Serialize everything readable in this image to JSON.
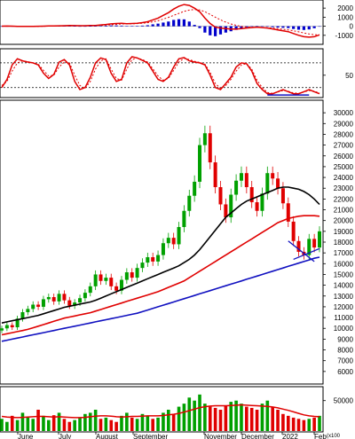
{
  "chart_data": [
    {
      "panel": "macd",
      "type": "line",
      "series": [
        {
          "role": "macd",
          "color": "#e00000",
          "values": [
            10,
            15,
            10,
            -5,
            -20,
            -20,
            -10,
            0,
            5,
            30,
            40,
            50,
            60,
            80,
            70,
            60,
            60,
            75,
            90,
            150,
            200,
            260,
            300,
            320,
            280,
            300,
            320,
            400,
            500,
            700,
            900,
            1200,
            1500,
            1900,
            2200,
            2400,
            2300,
            2000,
            1600,
            900,
            300,
            -100,
            -200,
            -250,
            -300,
            -300,
            -260,
            -200,
            -150,
            -100,
            -150,
            -200,
            -300,
            -400,
            -500,
            -600,
            -800,
            -1000,
            -1150,
            -1200,
            -1150,
            -950
          ]
        },
        {
          "role": "signal",
          "color": "#e00000",
          "style": "dashed",
          "values": [
            10,
            12,
            12,
            8,
            0,
            -8,
            -10,
            -7,
            -2,
            10,
            20,
            30,
            40,
            55,
            60,
            60,
            60,
            65,
            72,
            100,
            130,
            170,
            210,
            250,
            260,
            275,
            290,
            330,
            390,
            490,
            610,
            790,
            980,
            1200,
            1420,
            1640,
            1780,
            1850,
            1800,
            1600,
            1300,
            1000,
            700,
            450,
            250,
            100,
            -20,
            -80,
            -120,
            -120,
            -140,
            -160,
            -200,
            -260,
            -330,
            -400,
            -500,
            -620,
            -740,
            -850,
            -930,
            -950
          ]
        },
        {
          "role": "histogram",
          "color": "#0000cc",
          "type": "bar"
        }
      ],
      "ylim": [
        -1800,
        2700
      ],
      "yticks": [
        "2000",
        "1000",
        "0",
        "-1000"
      ]
    },
    {
      "panel": "stochastic",
      "type": "line",
      "series": [
        {
          "role": "%K",
          "color": "#e00000",
          "values": [
            20,
            40,
            75,
            90,
            85,
            82,
            80,
            75,
            55,
            42,
            52,
            82,
            88,
            75,
            35,
            15,
            20,
            45,
            80,
            92,
            88,
            55,
            35,
            40,
            80,
            95,
            92,
            86,
            80,
            60,
            40,
            35,
            45,
            70,
            90,
            93,
            85,
            82,
            80,
            75,
            50,
            20,
            15,
            30,
            45,
            70,
            80,
            78,
            60,
            30,
            15,
            5,
            5,
            10,
            15,
            10,
            5,
            5,
            10,
            15,
            10,
            5
          ]
        },
        {
          "role": "%D",
          "color": "#e00000",
          "style": "dashed",
          "values": [
            25,
            35,
            60,
            80,
            85,
            83,
            80,
            77,
            62,
            48,
            50,
            70,
            82,
            80,
            50,
            25,
            18,
            35,
            65,
            85,
            90,
            65,
            42,
            38,
            65,
            88,
            92,
            88,
            82,
            66,
            48,
            38,
            42,
            62,
            82,
            91,
            88,
            84,
            81,
            77,
            57,
            30,
            18,
            25,
            40,
            60,
            75,
            78,
            65,
            38,
            20,
            8,
            6,
            9,
            13,
            11,
            7,
            6,
            9,
            13,
            11,
            7
          ]
        }
      ],
      "ylim": [
        0,
        110
      ],
      "yticks": [
        "50"
      ],
      "reference_lines": [
        80,
        20
      ]
    },
    {
      "panel": "price",
      "type": "candlestick",
      "ylim": [
        5000,
        31000
      ],
      "yticks": [
        "30000",
        "29000",
        "28000",
        "27000",
        "26000",
        "25000",
        "24000",
        "23000",
        "22000",
        "21000",
        "20000",
        "19000",
        "18000",
        "17000",
        "16000",
        "15000",
        "14000",
        "13000",
        "12000",
        "11000",
        "10000",
        "9000",
        "8000",
        "7000",
        "6000"
      ],
      "xtick_labels": [
        "June",
        "July",
        "August",
        "September",
        "November",
        "December",
        "2022",
        "Feb"
      ],
      "close": [
        10000,
        10300,
        10100,
        10900,
        11500,
        11800,
        12200,
        12000,
        12700,
        12900,
        12500,
        13200,
        12600,
        12100,
        12400,
        12800,
        13300,
        13900,
        15000,
        14400,
        14700,
        13900,
        13500,
        14500,
        15200,
        14700,
        15600,
        16100,
        16600,
        16200,
        16800,
        17900,
        18400,
        17800,
        19400,
        20900,
        22300,
        23600,
        27000,
        28100,
        25400,
        23100,
        21500,
        20300,
        22400,
        23700,
        24400,
        23100,
        21700,
        20900,
        22500,
        24400,
        23900,
        23000,
        21600,
        19900,
        18100,
        17100,
        16800,
        18300,
        17500,
        19000
      ],
      "ma_lines": [
        {
          "role": "ma-black",
          "color": "#000000",
          "values": [
            10500,
            10600,
            10700,
            10800,
            10900,
            11000,
            11100,
            11200,
            11350,
            11500,
            11650,
            11800,
            11950,
            12050,
            12150,
            12250,
            12350,
            12450,
            12600,
            12800,
            13000,
            13200,
            13400,
            13600,
            13800,
            14000,
            14200,
            14400,
            14600,
            14800,
            15000,
            15200,
            15400,
            15600,
            15800,
            16100,
            16400,
            16800,
            17300,
            17900,
            18500,
            19100,
            19700,
            20300,
            20700,
            21100,
            21500,
            21800,
            22000,
            22200,
            22400,
            22600,
            22800,
            23000,
            23100,
            23100,
            23000,
            22900,
            22700,
            22400,
            22000,
            21500
          ]
        },
        {
          "role": "ma-red",
          "color": "#e00000",
          "values": [
            9400,
            9500,
            9600,
            9700,
            9800,
            9900,
            10050,
            10200,
            10350,
            10500,
            10650,
            10800,
            10950,
            11050,
            11150,
            11250,
            11350,
            11450,
            11600,
            11750,
            11900,
            12050,
            12200,
            12350,
            12500,
            12650,
            12800,
            12950,
            13100,
            13250,
            13400,
            13600,
            13800,
            14000,
            14200,
            14400,
            14700,
            15000,
            15300,
            15600,
            15900,
            16200,
            16500,
            16800,
            17100,
            17400,
            17700,
            18000,
            18300,
            18600,
            18900,
            19200,
            19500,
            19800,
            20000,
            20200,
            20300,
            20400,
            20450,
            20450,
            20450,
            20400
          ]
        },
        {
          "role": "ma-blue",
          "color": "#1010c0",
          "values": [
            8800,
            8900,
            9000,
            9100,
            9200,
            9300,
            9400,
            9500,
            9600,
            9700,
            9800,
            9900,
            10000,
            10100,
            10200,
            10300,
            10400,
            10500,
            10600,
            10700,
            10800,
            10900,
            11000,
            11100,
            11200,
            11300,
            11400,
            11550,
            11700,
            11850,
            12000,
            12150,
            12300,
            12450,
            12600,
            12750,
            12900,
            13050,
            13200,
            13350,
            13500,
            13650,
            13800,
            13950,
            14100,
            14250,
            14400,
            14550,
            14700,
            14850,
            15000,
            15150,
            15300,
            15450,
            15600,
            15750,
            15900,
            16050,
            16200,
            16350,
            16500,
            16600
          ]
        }
      ],
      "trendlines": [
        {
          "color": "#1010c0",
          "from": [
            55,
            18100
          ],
          "to": [
            60,
            16200
          ]
        },
        {
          "color": "#1010c0",
          "from": [
            56,
            16400
          ],
          "to": [
            61,
            17400
          ]
        }
      ]
    },
    {
      "panel": "volume",
      "type": "bar",
      "ylim": [
        0,
        70000
      ],
      "yticks": [
        "50000"
      ],
      "unit_label": "(x100",
      "values": [
        20000,
        15000,
        25000,
        18000,
        30000,
        22000,
        20000,
        35000,
        25000,
        18000,
        26000,
        30000,
        20000,
        15000,
        18000,
        22000,
        28000,
        30000,
        35000,
        20000,
        22000,
        18000,
        15000,
        25000,
        30000,
        22000,
        20000,
        28000,
        25000,
        20000,
        22000,
        30000,
        35000,
        28000,
        40000,
        45000,
        55000,
        50000,
        60000,
        45000,
        40000,
        38000,
        35000,
        42000,
        48000,
        50000,
        45000,
        40000,
        38000,
        35000,
        45000,
        50000,
        40000,
        35000,
        28000,
        25000,
        22000,
        20000,
        18000,
        20000,
        22000,
        25000
      ],
      "ma": [
        24000,
        23000,
        22500,
        22000,
        22500,
        23000,
        23500,
        24000,
        24000,
        23500,
        23000,
        23500,
        23000,
        22500,
        22000,
        22000,
        22500,
        23500,
        24500,
        25000,
        25000,
        24500,
        23500,
        23000,
        23500,
        24000,
        24000,
        24500,
        25000,
        25000,
        25000,
        25500,
        26500,
        27500,
        29000,
        31000,
        33500,
        36000,
        38500,
        40000,
        41000,
        41500,
        41500,
        41500,
        42000,
        42500,
        43000,
        42500,
        42000,
        41500,
        41000,
        40500,
        39500,
        38000,
        36000,
        34000,
        31500,
        29000,
        26500,
        25000,
        24000,
        23500
      ]
    }
  ]
}
